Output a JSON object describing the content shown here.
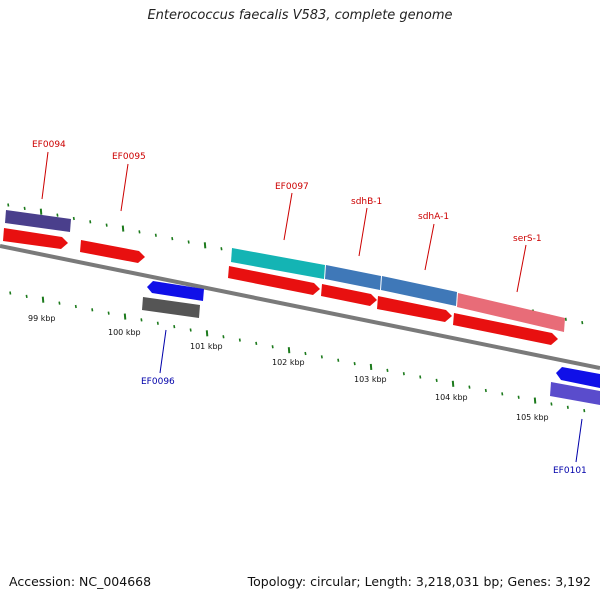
{
  "title": "Enterococcus faecalis V583, complete genome",
  "footer": {
    "accession": "Accession: NC_004668",
    "summary": "Topology: circular; Length: 3,218,031 bp; Genes: 3,192"
  },
  "colors": {
    "backbone": "#7a7a7a",
    "tick_green": "#1c7a1c",
    "upper_label": "#cc0000",
    "lower_label": "#0000aa"
  },
  "scale_ticks": [
    "99 kbp",
    "100 kbp",
    "101 kbp",
    "102 kbp",
    "103 kbp",
    "104 kbp",
    "105 kbp"
  ],
  "genes": [
    {
      "name": "EF0094",
      "color": "#4a3f8c"
    },
    {
      "name": "EF0095",
      "color": "#e81010"
    },
    {
      "name": "EF0096",
      "color": "#555555"
    },
    {
      "name": "EF0097",
      "color": "#14b4b4"
    },
    {
      "name": "sdhB-1",
      "color": "#3f78b8"
    },
    {
      "name": "sdhA-1",
      "color": "#3f78b8"
    },
    {
      "name": "serS-1",
      "color": "#e86c78"
    },
    {
      "name": "EF0101",
      "color": "#5a4ccc"
    }
  ]
}
